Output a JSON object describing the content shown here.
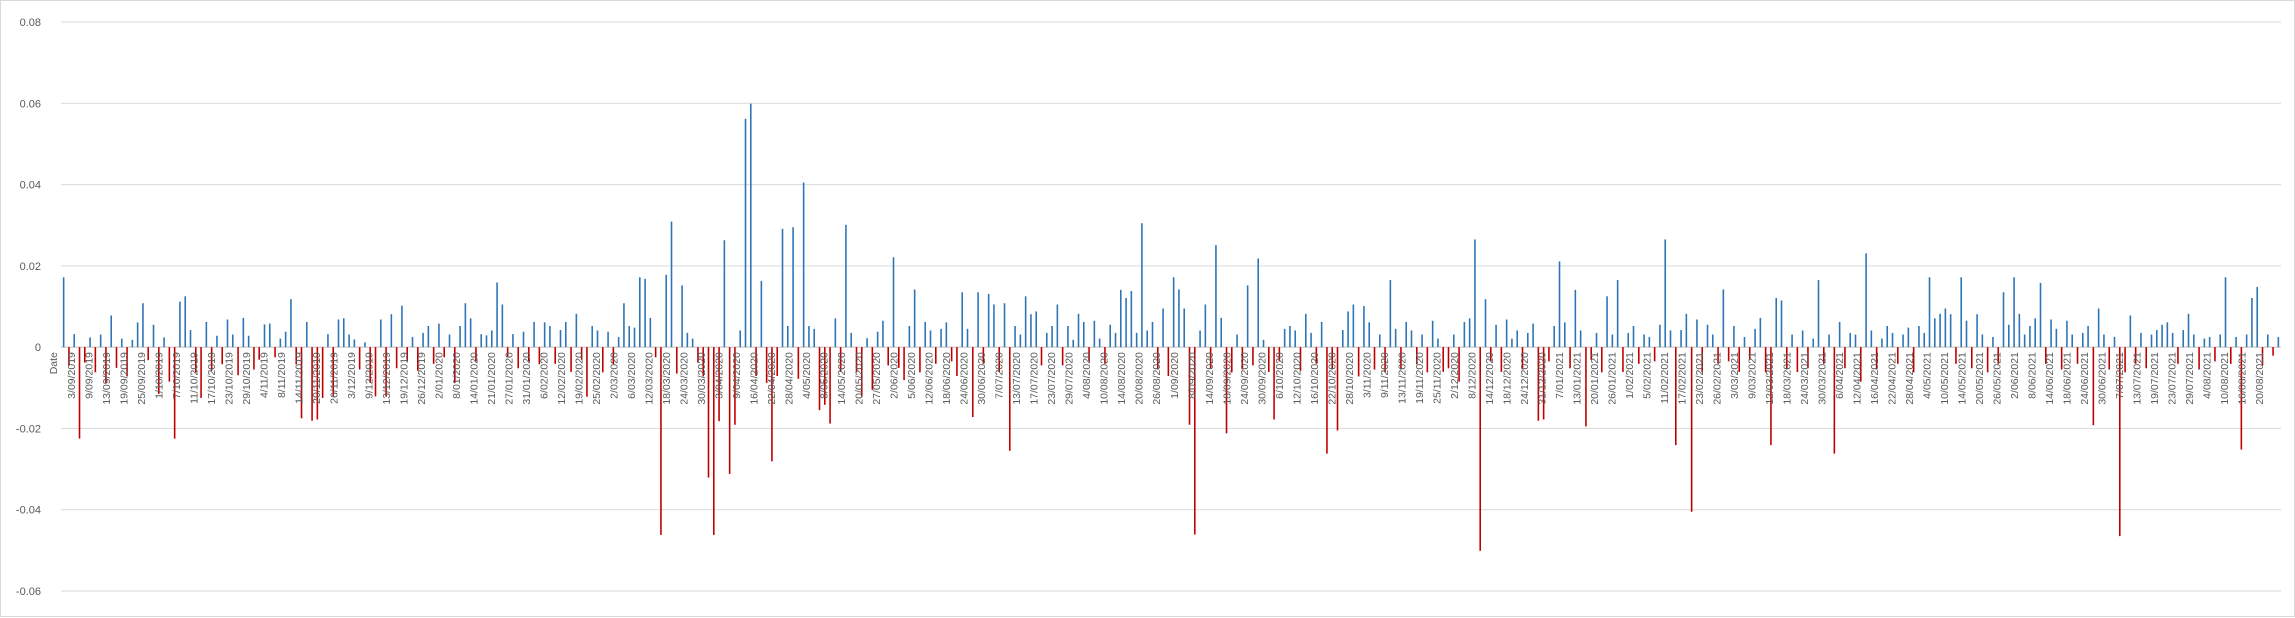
{
  "chart_data": {
    "type": "bar",
    "title": "",
    "xlabel": "Date",
    "ylabel": "",
    "ylim": [
      -0.06,
      0.08
    ],
    "yticks": [
      0.08,
      0.06,
      0.04,
      0.02,
      0,
      -0.02,
      -0.04,
      -0.06
    ],
    "ytick_labels": [
      "0.08",
      "0.06",
      "0.04",
      "0.02",
      "0",
      "-0.02",
      "-0.04",
      "-0.06"
    ],
    "grid": true,
    "legend": "none",
    "colors": {
      "positive": "#2e75b6",
      "negative": "#c00000"
    },
    "category_labels": [
      "3/09/2019",
      "9/09/2019",
      "13/09/2019",
      "19/09/2019",
      "25/09/2019",
      "1/10/2019",
      "7/10/2019",
      "11/10/2019",
      "17/10/2019",
      "23/10/2019",
      "29/10/2019",
      "4/11/2019",
      "8/11/2019",
      "14/11/2019",
      "20/11/2019",
      "26/11/2019",
      "3/12/2019",
      "9/12/2019",
      "13/12/2019",
      "19/12/2019",
      "26/12/2019",
      "2/01/2020",
      "8/01/2020",
      "14/01/2020",
      "21/01/2020",
      "27/01/2020",
      "31/01/2020",
      "6/02/2020",
      "12/02/2020",
      "19/02/2020",
      "25/02/2020",
      "2/03/2020",
      "6/03/2020",
      "12/03/2020",
      "18/03/2020",
      "24/03/2020",
      "30/03/2020",
      "3/04/2020",
      "9/04/2020",
      "16/04/2020",
      "22/04/2020",
      "28/04/2020",
      "4/05/2020",
      "8/05/2020",
      "14/05/2020",
      "20/05/2020",
      "27/05/2020",
      "2/06/2020",
      "5/06/2020",
      "12/06/2020",
      "18/06/2020",
      "24/06/2020",
      "30/06/2020",
      "7/07/2020",
      "13/07/2020",
      "17/07/2020",
      "23/07/2020",
      "29/07/2020",
      "4/08/2020",
      "10/08/2020",
      "14/08/2020",
      "20/08/2020",
      "26/08/2020",
      "1/09/2020",
      "8/09/2020",
      "14/09/2020",
      "18/09/2020",
      "24/09/2020",
      "30/09/2020",
      "6/10/2020",
      "12/10/2020",
      "16/10/2020",
      "22/10/2020",
      "28/10/2020",
      "3/11/2020",
      "9/11/2020",
      "13/11/2020",
      "19/11/2020",
      "25/11/2020",
      "2/12/2020",
      "8/12/2020",
      "14/12/2020",
      "18/12/2020",
      "24/12/2020",
      "31/12/2020",
      "7/01/2021",
      "13/01/2021",
      "20/01/2021",
      "26/01/2021",
      "1/02/2021",
      "5/02/2021",
      "11/02/2021",
      "17/02/2021",
      "23/02/2021",
      "26/02/2021",
      "3/03/2021",
      "9/03/2021",
      "12/03/2021",
      "18/03/2021",
      "24/03/2021",
      "30/03/2021",
      "6/04/2021",
      "12/04/2021",
      "16/04/2021",
      "22/04/2021",
      "28/04/2021",
      "4/05/2021",
      "10/05/2021",
      "14/05/2021",
      "20/05/2021",
      "26/05/2021",
      "2/06/2021",
      "8/06/2021",
      "14/06/2021",
      "18/06/2021",
      "24/06/2021",
      "30/06/2021",
      "7/07/2021",
      "13/07/2021",
      "19/07/2021",
      "23/07/2021",
      "29/07/2021",
      "4/08/2021",
      "10/08/2021",
      "16/08/2021",
      "20/08/2021"
    ],
    "values": [
      0.0172,
      -0.0045,
      0.0032,
      -0.0225,
      -0.0038,
      0.0024,
      -0.0062,
      0.0031,
      -0.0088,
      0.0078,
      -0.0051,
      0.0021,
      -0.0072,
      0.0018,
      0.0061,
      0.0108,
      -0.0032,
      0.0055,
      -0.0115,
      0.0024,
      -0.0085,
      -0.0225,
      0.0112,
      0.0125,
      0.0042,
      -0.0062,
      -0.0125,
      0.0062,
      -0.0058,
      0.0028,
      -0.0042,
      0.0068,
      0.0031,
      -0.0069,
      0.0072,
      0.0028,
      -0.0055,
      -0.0031,
      0.0056,
      0.0058,
      -0.0025,
      0.0021,
      0.0038,
      0.0118,
      -0.0042,
      -0.0175,
      0.0062,
      -0.0181,
      -0.0178,
      -0.0125,
      0.0032,
      -0.0121,
      0.0068,
      0.0071,
      0.0031,
      0.0019,
      -0.0055,
      0.0012,
      -0.0088,
      -0.0121,
      0.0068,
      -0.0122,
      0.0081,
      -0.0052,
      0.0102,
      -0.0035,
      0.0025,
      -0.0058,
      0.0035,
      0.0052,
      -0.0041,
      0.0058,
      -0.0025,
      0.0031,
      -0.0088,
      0.0052,
      0.0108,
      0.0071,
      -0.0035,
      0.0032,
      0.0029,
      0.0041,
      0.0159,
      0.0105,
      -0.0025,
      0.0032,
      -0.0052,
      0.0038,
      -0.0035,
      0.0062,
      -0.0042,
      0.0061,
      0.0052,
      -0.0041,
      0.0042,
      0.0062,
      -0.0061,
      0.0082,
      -0.0031,
      -0.0122,
      0.0052,
      0.0041,
      -0.0062,
      0.0038,
      -0.0042,
      0.0025,
      0.0108,
      0.0052,
      0.0048,
      0.0172,
      0.0168,
      0.0072,
      -0.0025,
      -0.0462,
      0.0178,
      0.0309,
      -0.0065,
      0.0152,
      0.0035,
      0.0021,
      -0.0038,
      -0.0072,
      -0.0321,
      -0.0462,
      -0.0182,
      0.0263,
      -0.0312,
      -0.0191,
      0.0041,
      0.0562,
      0.0599,
      -0.0071,
      0.0163,
      -0.0088,
      -0.0281,
      -0.0071,
      0.0291,
      0.0052,
      0.0295,
      -0.0078,
      0.0405,
      0.0052,
      0.0045,
      -0.0155,
      -0.0142,
      -0.0188,
      0.0071,
      -0.0061,
      0.0301,
      0.0035,
      -0.0062,
      -0.0122,
      0.0022,
      -0.0105,
      0.0038,
      0.0065,
      -0.0045,
      0.0221,
      -0.0051,
      -0.0081,
      0.0052,
      0.0142,
      -0.0062,
      0.0062,
      0.0041,
      -0.0041,
      0.0045,
      0.0061,
      -0.0035,
      -0.0071,
      0.0135,
      0.0045,
      -0.0172,
      0.0135,
      -0.0041,
      0.0131,
      0.0105,
      -0.0061,
      0.0108,
      -0.0255,
      0.0052,
      0.0031,
      0.0125,
      0.0081,
      0.0088,
      -0.0045,
      0.0035,
      0.0052,
      0.0105,
      -0.0045,
      0.0052,
      0.0018,
      0.0082,
      0.0062,
      -0.0035,
      0.0065,
      0.0021,
      -0.0041,
      0.0055,
      0.0035,
      0.0141,
      0.0121,
      0.0138,
      0.0035,
      0.0305,
      0.0041,
      0.0062,
      -0.0055,
      0.0095,
      -0.0071,
      0.0172,
      0.0142,
      0.0095,
      -0.0191,
      -0.0461,
      0.0041,
      0.0105,
      -0.0052,
      0.0251,
      0.0072,
      -0.0212,
      -0.0062,
      0.0031,
      -0.0055,
      0.0152,
      -0.0045,
      0.0218,
      0.0018,
      -0.0061,
      -0.0178,
      -0.0035,
      0.0045,
      0.0052,
      0.0041,
      -0.0058,
      0.0082,
      0.0035,
      -0.0041,
      0.0062,
      -0.0262,
      -0.0055,
      -0.0205,
      0.0042,
      0.0088,
      0.0105,
      -0.0072,
      0.0101,
      0.0061,
      -0.0055,
      0.0031,
      -0.0061,
      0.0165,
      0.0045,
      -0.0055,
      0.0062,
      0.0041,
      -0.0042,
      0.0031,
      -0.0062,
      0.0065,
      0.0021,
      -0.0061,
      -0.0052,
      0.0031,
      -0.0085,
      0.0062,
      0.0071,
      0.0265,
      -0.0501,
      0.0118,
      -0.0035,
      0.0055,
      -0.0061,
      0.0068,
      0.0021,
      0.0041,
      -0.0055,
      0.0035,
      0.0058,
      -0.0181,
      -0.0178,
      -0.0035,
      0.0052,
      0.0211,
      0.0061,
      -0.0052,
      0.0141,
      0.0041,
      -0.0195,
      -0.0031,
      0.0035,
      -0.0062,
      0.0125,
      0.0031,
      0.0165,
      -0.0061,
      0.0035,
      0.0052,
      -0.0041,
      0.0031,
      0.0025,
      -0.0035,
      0.0055,
      0.0265,
      0.0041,
      -0.0241,
      0.0042,
      0.0082,
      -0.0405,
      0.0068,
      -0.0062,
      0.0055,
      0.0031,
      -0.0041,
      0.0142,
      -0.0035,
      0.0052,
      -0.0061,
      0.0025,
      -0.0031,
      0.0045,
      0.0072,
      -0.0062,
      -0.0241,
      0.0121,
      0.0115,
      -0.0055,
      0.0031,
      -0.0061,
      0.0041,
      -0.0052,
      0.0021,
      0.0165,
      -0.0041,
      0.0031,
      -0.0262,
      0.0062,
      -0.0052,
      0.0035,
      0.0031,
      -0.0085,
      0.0231,
      0.0041,
      -0.0055,
      0.0021,
      0.0052,
      0.0035,
      -0.0041,
      0.0031,
      0.0048,
      -0.0062,
      0.0052,
      0.0035,
      0.0172,
      0.0071,
      0.0082,
      0.0095,
      0.0081,
      -0.0041,
      0.0172,
      0.0065,
      -0.0052,
      0.0081,
      0.0031,
      -0.0062,
      0.0025,
      -0.0041,
      0.0135,
      0.0055,
      0.0172,
      0.0082,
      0.0031,
      0.0052,
      0.0071,
      0.0158,
      -0.0041,
      0.0068,
      0.0045,
      -0.0055,
      0.0065,
      0.0031,
      -0.0041,
      0.0035,
      0.0052,
      -0.0192,
      0.0095,
      0.0031,
      -0.0055,
      0.0025,
      -0.0465,
      -0.0062,
      0.0078,
      -0.0041,
      0.0035,
      -0.0052,
      0.0031,
      0.0042,
      0.0055,
      0.0061,
      0.0035,
      -0.0041,
      0.0042,
      0.0082,
      0.0031,
      -0.0055,
      0.0021,
      0.0025,
      -0.0035,
      0.0031,
      0.0172,
      -0.0041,
      0.0025,
      -0.0252,
      0.0031,
      0.0121,
      0.0148,
      -0.0045,
      0.0031,
      -0.0021,
      0.0025
    ]
  }
}
